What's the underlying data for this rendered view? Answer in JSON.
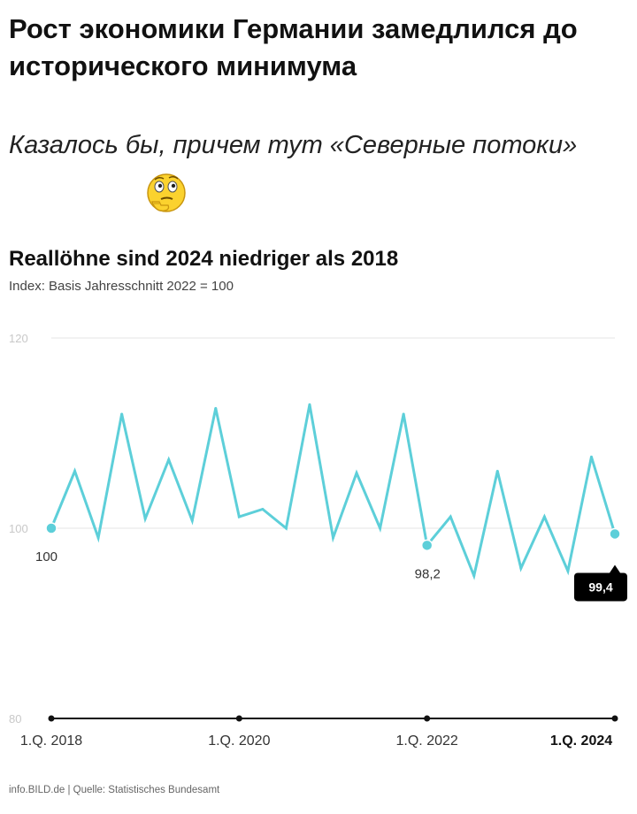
{
  "post": {
    "headline": "Рост экономики Германии замедлился до исторического минимума",
    "subline": "Казалось бы, причем тут «Северные потоки»",
    "emoji_icon": "thinking-face-icon"
  },
  "chart_data": {
    "type": "line",
    "title": "Reallöhne sind 2024 niedriger als 2018",
    "subtitle": "Index: Basis Jahresschnitt 2022 = 100",
    "ylim": [
      80,
      120
    ],
    "yticks": [
      "120",
      "100",
      "80"
    ],
    "xtick_labels": [
      "1.Q. 2018",
      "1.Q. 2020",
      "1.Q. 2022",
      "1.Q. 2024"
    ],
    "x": [
      "1.Q. 2018",
      "2.Q. 2018",
      "3.Q. 2018",
      "4.Q. 2018",
      "1.Q. 2019",
      "2.Q. 2019",
      "3.Q. 2019",
      "4.Q. 2019",
      "1.Q. 2020",
      "2.Q. 2020",
      "3.Q. 2020",
      "4.Q. 2020",
      "1.Q. 2021",
      "2.Q. 2021",
      "3.Q. 2021",
      "4.Q. 2021",
      "1.Q. 2022",
      "2.Q. 2022",
      "3.Q. 2022",
      "4.Q. 2022",
      "1.Q. 2023",
      "2.Q. 2023",
      "3.Q. 2023",
      "4.Q. 2023",
      "1.Q. 2024"
    ],
    "series": [
      {
        "values": [
          100,
          106,
          99,
          112,
          101,
          107.2,
          100.8,
          112.6,
          101.2,
          102,
          100,
          113,
          99,
          105.8,
          100,
          112,
          98.2,
          101.2,
          95,
          106,
          95.8,
          101.2,
          95.5,
          107.5,
          99.4
        ]
      }
    ],
    "annotations": [
      {
        "x": "1.Q. 2018",
        "value": 100,
        "label": "100"
      },
      {
        "x": "1.Q. 2022",
        "value": 98.2,
        "label": "98,2"
      },
      {
        "x": "1.Q. 2024",
        "value": 99.4,
        "label": "99,4"
      }
    ],
    "grid": true,
    "line_color": "#5dcfd9",
    "badge_color": "#000000",
    "source": "info.BILD.de | Quelle: Statistisches Bundesamt"
  }
}
